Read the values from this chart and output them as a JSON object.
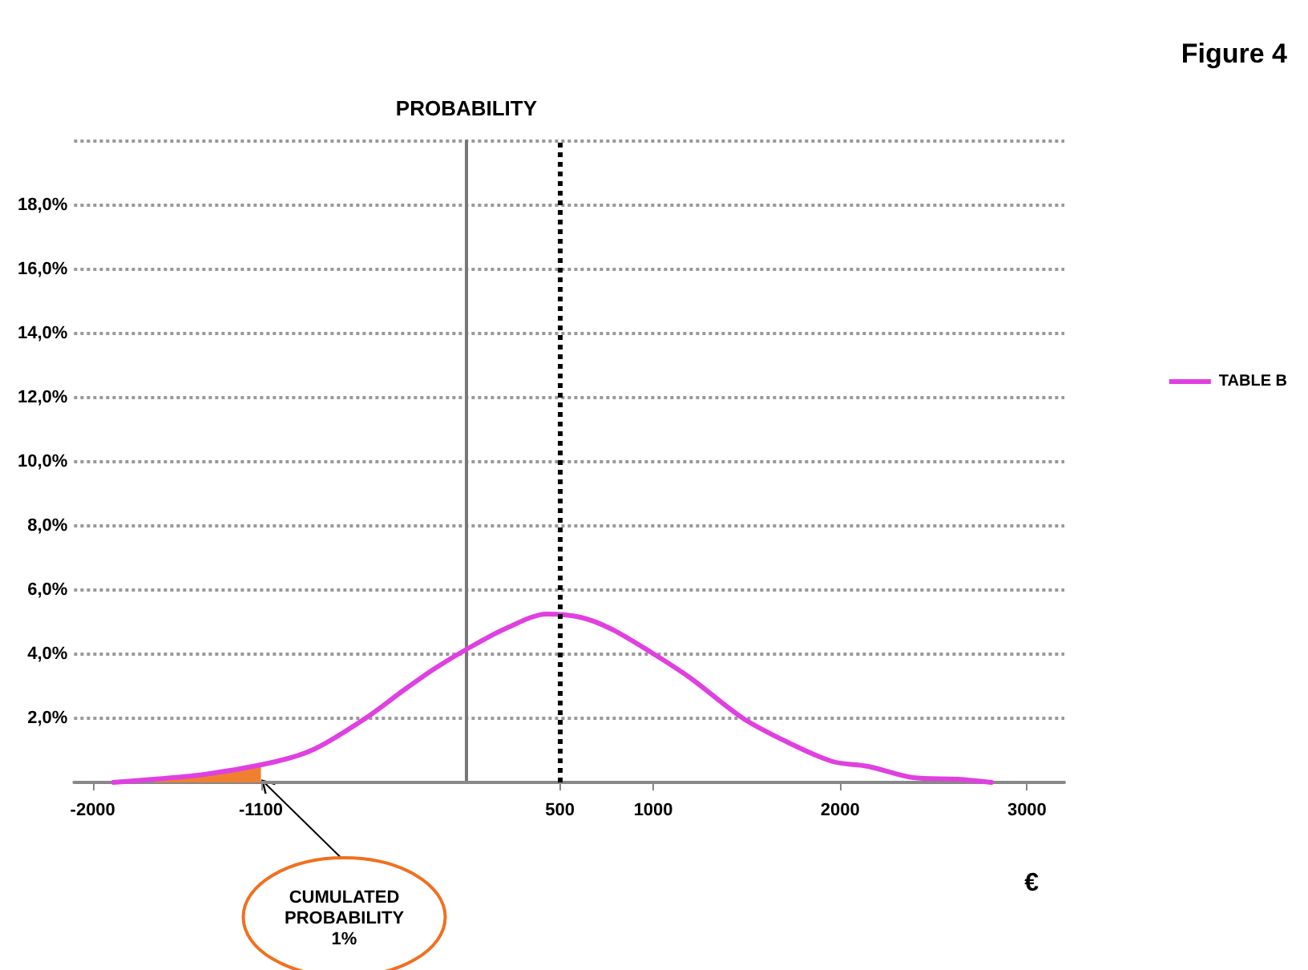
{
  "chart_data": {
    "type": "line",
    "title": "Figure 4",
    "ylabel": "PROBABILITY",
    "xlabel": "€",
    "xlim": [
      -2100,
      3200
    ],
    "xticks": [
      -2000,
      -1100,
      500,
      1000,
      2000,
      3000
    ],
    "ylim": [
      0,
      20
    ],
    "yticks": [
      {
        "value": 2,
        "label": "2,0%"
      },
      {
        "value": 4,
        "label": "4,0%"
      },
      {
        "value": 6,
        "label": "6,0%"
      },
      {
        "value": 8,
        "label": "8,0%"
      },
      {
        "value": 10,
        "label": "10,0%"
      },
      {
        "value": 12,
        "label": "12,0%"
      },
      {
        "value": 14,
        "label": "14,0%"
      },
      {
        "value": 16,
        "label": "16,0%"
      },
      {
        "value": 18,
        "label": "18,0%"
      },
      {
        "value": 20,
        "label": null
      }
    ],
    "grid": "y",
    "legend": "right",
    "marker": "none",
    "line_style": "solid",
    "series": [
      {
        "name": "TABLE B",
        "color": "#e040e0",
        "x": [
          -1890,
          -1670,
          -1400,
          -1020,
          -810,
          -540,
          -330,
          -170,
          0,
          210,
          430,
          610,
          770,
          990,
          1200,
          1480,
          1720,
          1960,
          2150,
          2390,
          2630,
          2810
        ],
        "values": [
          0,
          0.1,
          0.25,
          0.65,
          1.05,
          2.0,
          2.9,
          3.55,
          4.15,
          4.8,
          5.25,
          5.15,
          4.8,
          4.05,
          3.25,
          2.0,
          1.25,
          0.65,
          0.5,
          0.15,
          0.1,
          0
        ]
      },
      {
        "type": "area",
        "color": "#f08030",
        "x": [
          -1670,
          -1400,
          -1100
        ],
        "values": [
          0.1,
          0.25,
          0.55
        ]
      }
    ],
    "ref_lines": [
      {
        "axis": "x",
        "value": 500,
        "color": "#000000",
        "line_style": "dotted"
      }
    ],
    "annotations": [
      "CUMULATED\nPROBABILITY\n1%"
    ]
  }
}
